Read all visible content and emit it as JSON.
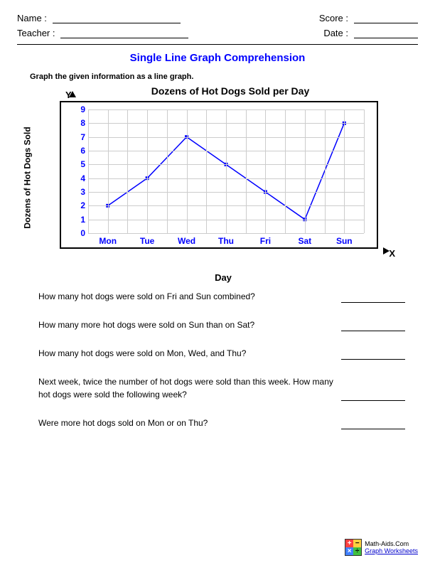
{
  "header": {
    "name_label": "Name  :",
    "teacher_label": "Teacher :",
    "score_label": "Score :",
    "date_label": "Date :"
  },
  "title": "Single Line Graph Comprehension",
  "instruction": "Graph the given information as a line graph.",
  "chart": {
    "type": "line",
    "title": "Dozens of Hot Dogs Sold per Day",
    "y_letter": "Y",
    "x_letter": "X",
    "x_axis_label": "Day",
    "y_axis_label": "Dozens of Hot Dogs Sold",
    "categories": [
      "Mon",
      "Tue",
      "Wed",
      "Thu",
      "Fri",
      "Sat",
      "Sun"
    ],
    "values": [
      2,
      4,
      7,
      5,
      3,
      1,
      8
    ],
    "ylim": [
      0,
      9
    ],
    "ytick_step": 1,
    "line_color": "#0000ff",
    "marker_color": "#0000ff",
    "marker_size": 5,
    "line_width": 1.5,
    "grid_color": "#cccccc",
    "tick_label_color": "#0000ff",
    "background_color": "#ffffff",
    "border_color": "#000000",
    "title_fontsize": 14,
    "label_fontsize": 12
  },
  "questions": [
    "How many hot dogs were sold on Fri and Sun combined?",
    "How many more hot dogs were sold on Sun than on Sat?",
    "How many hot dogs were sold on Mon, Wed, and Thu?",
    "Next week, twice the number of hot dogs were sold than this week. How many hot dogs were sold the following week?",
    "Were more hot dogs sold on Mon or on Thu?"
  ],
  "footer": {
    "line1": "Math-Aids.Com",
    "line2": "Graph Worksheets"
  }
}
